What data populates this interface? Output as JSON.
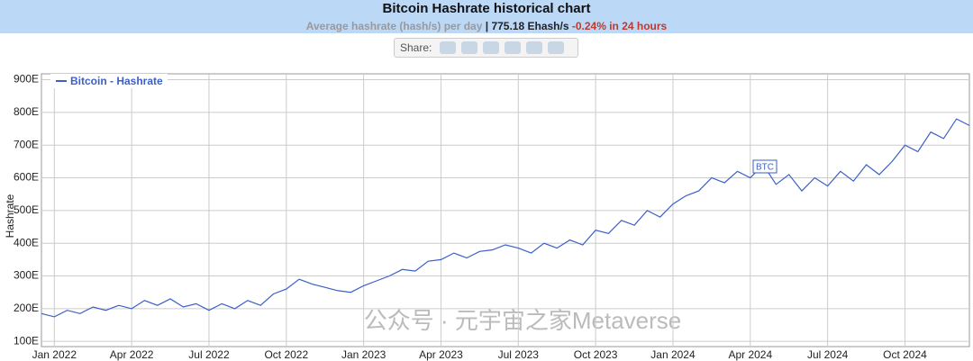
{
  "header": {
    "title": "Bitcoin Hashrate historical chart",
    "subtitle_label": "Average hashrate (hash/s) per day",
    "subtitle_value": "| 775.18 Ehash/s",
    "subtitle_change": "-0.24% in 24 hours",
    "share": "Share:"
  },
  "watermark": "公众号 · 元宇宙之家Metaverse",
  "chart_data": {
    "type": "line",
    "y_label": "Hashrate",
    "annotation": "BTC",
    "categories": [
      null,
      "Jan 2022",
      null,
      null,
      null,
      null,
      null,
      "Apr 2022",
      null,
      null,
      null,
      null,
      null,
      "Jul 2022",
      null,
      null,
      null,
      null,
      null,
      "Oct 2022",
      null,
      null,
      null,
      null,
      null,
      "Jan 2023",
      null,
      null,
      null,
      null,
      null,
      "Apr 2023",
      null,
      null,
      null,
      null,
      null,
      "Jul 2023",
      null,
      null,
      null,
      null,
      null,
      "Oct 2023",
      null,
      null,
      null,
      null,
      null,
      "Jan 2024",
      null,
      null,
      null,
      null,
      null,
      "Apr 2024",
      null,
      null,
      null,
      null,
      null,
      "Jul 2024",
      null,
      null,
      null,
      null,
      null,
      "Oct 2024",
      null,
      null,
      null,
      null,
      null
    ],
    "series": [
      {
        "name": "Bitcoin - Hashrate",
        "color": "#3a5fc8",
        "values": [
          185,
          175,
          195,
          185,
          205,
          195,
          210,
          200,
          225,
          210,
          230,
          205,
          215,
          195,
          215,
          200,
          225,
          210,
          245,
          260,
          290,
          275,
          265,
          255,
          250,
          270,
          285,
          300,
          320,
          315,
          345,
          350,
          370,
          355,
          375,
          380,
          395,
          385,
          370,
          400,
          385,
          410,
          395,
          440,
          430,
          470,
          455,
          500,
          480,
          520,
          545,
          560,
          600,
          585,
          620,
          600,
          640,
          580,
          610,
          560,
          600,
          575,
          620,
          590,
          640,
          610,
          650,
          700,
          680,
          740,
          720,
          780,
          760
        ]
      }
    ],
    "ylim": [
      84,
      918
    ],
    "yticks": [
      {
        "value": 100,
        "label": "100E"
      },
      {
        "value": 200,
        "label": "200E"
      },
      {
        "value": 300,
        "label": "300E"
      },
      {
        "value": 400,
        "label": "400E"
      },
      {
        "value": 500,
        "label": "500E"
      },
      {
        "value": 600,
        "label": "600E"
      },
      {
        "value": 700,
        "label": "700E"
      },
      {
        "value": 800,
        "label": "800E"
      },
      {
        "value": 900,
        "label": "900E"
      }
    ],
    "grid": true
  }
}
